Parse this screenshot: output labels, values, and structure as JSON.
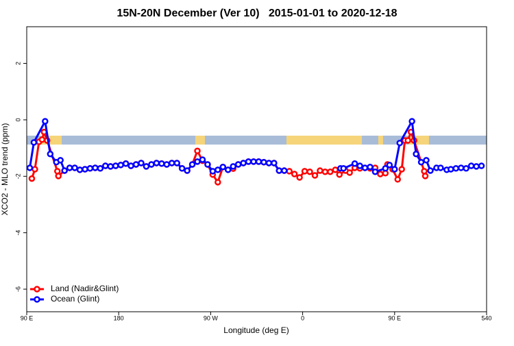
{
  "chart_data": {
    "type": "line",
    "title": "15N-20N December (Ver 10)   2015-01-01 to 2020-12-18",
    "x_label": "Longitude (deg E)",
    "y_label": "XCO2 - MLO trend (ppm)",
    "xlim": [
      90,
      540
    ],
    "xticks": [
      {
        "value": 90,
        "label": "90 E"
      },
      180,
      {
        "value": 270,
        "label": "90 W"
      },
      {
        "value": 360,
        "label": "0"
      },
      {
        "value": 450,
        "label": "90 E"
      },
      540
    ],
    "ylim": [
      -6.8,
      3.3
    ],
    "yticks": [
      -6,
      -4,
      -2,
      0,
      2
    ],
    "legend": "bottom-left",
    "series": [
      {
        "name": "Land (Nadir&Glint)",
        "color": "#ff0000",
        "x": [
          95,
          98,
          102,
          105,
          107,
          110,
          120,
          121,
          127,
          132,
          137,
          142,
          147,
          152,
          157,
          162,
          167,
          172,
          177,
          182,
          187,
          192,
          197,
          202,
          207,
          212,
          217,
          222,
          227,
          232,
          237,
          242,
          247,
          252,
          257,
          262,
          267,
          272,
          277,
          282,
          287,
          292,
          297,
          302,
          307,
          312,
          317,
          322,
          327,
          332,
          337,
          342,
          347,
          352,
          357,
          362,
          367,
          372,
          377,
          382,
          387,
          392,
          396,
          402,
          406,
          411,
          416,
          421,
          426,
          431,
          436,
          441,
          443,
          448,
          453,
          457,
          460,
          463,
          466,
          469,
          479,
          480
        ],
        "values": [
          -2.08,
          -1.75,
          -0.78,
          -0.7,
          -0.43,
          -0.73,
          -1.82,
          -1.99,
          -1.8,
          -1.7,
          -1.7,
          -1.77,
          -1.75,
          -1.72,
          -1.7,
          -1.72,
          -1.63,
          -1.65,
          -1.63,
          -1.6,
          -1.55,
          -1.63,
          -1.58,
          -1.53,
          -1.65,
          -1.58,
          -1.53,
          -1.55,
          -1.58,
          -1.53,
          -1.53,
          -1.72,
          -1.8,
          -1.58,
          -1.1,
          -1.45,
          -1.58,
          -1.94,
          -2.21,
          -1.67,
          -1.77,
          -1.73,
          -1.58,
          -1.53,
          -1.48,
          -1.48,
          -1.48,
          -1.5,
          -1.53,
          -1.53,
          -1.8,
          -1.8,
          -1.82,
          -1.92,
          -2.04,
          -1.82,
          -1.84,
          -1.97,
          -1.8,
          -1.84,
          -1.84,
          -1.77,
          -1.94,
          -1.8,
          -1.87,
          -1.7,
          -1.72,
          -1.7,
          -1.72,
          -1.7,
          -1.92,
          -1.89,
          -1.58,
          -1.75,
          -2.11,
          -1.75,
          -0.73,
          -0.73,
          -0.43,
          -0.73,
          -1.82,
          -1.99
        ]
      },
      {
        "name": "Ocean (Glint)",
        "color": "#0000ff",
        "x": [
          93,
          97,
          108,
          113,
          119,
          123,
          127,
          132,
          137,
          142,
          147,
          152,
          157,
          162,
          167,
          172,
          177,
          182,
          187,
          192,
          197,
          202,
          207,
          212,
          217,
          222,
          227,
          232,
          237,
          242,
          247,
          252,
          257,
          262,
          267,
          272,
          277,
          282,
          287,
          292,
          297,
          302,
          307,
          312,
          317,
          322,
          327,
          332,
          337,
          342,
          370,
          397,
          400,
          411,
          416,
          421,
          426,
          431,
          441,
          445,
          450,
          455,
          467,
          471,
          476,
          481,
          485,
          491,
          495,
          501,
          505,
          510,
          515,
          520,
          525,
          530,
          535
        ],
        "values": [
          -1.7,
          -0.8,
          -0.05,
          -1.21,
          -1.5,
          -1.43,
          -1.8,
          -1.7,
          -1.7,
          -1.77,
          -1.75,
          -1.72,
          -1.7,
          -1.72,
          -1.63,
          -1.65,
          -1.63,
          -1.6,
          -1.55,
          -1.63,
          -1.58,
          -1.53,
          -1.65,
          -1.58,
          -1.53,
          -1.55,
          -1.58,
          -1.53,
          -1.53,
          -1.72,
          -1.8,
          -1.58,
          -1.48,
          -1.41,
          -1.58,
          -1.82,
          -1.77,
          -1.67,
          -1.77,
          -1.65,
          -1.58,
          -1.53,
          -1.48,
          -1.48,
          -1.48,
          -1.5,
          -1.53,
          -1.53,
          -1.8,
          -1.8,
          null,
          -1.72,
          -1.72,
          -1.55,
          -1.63,
          -1.7,
          -1.67,
          -1.84,
          -1.72,
          -1.6,
          -1.75,
          -0.82,
          -0.05,
          -1.21,
          -1.5,
          -1.43,
          -1.8,
          -1.7,
          -1.7,
          -1.77,
          -1.75,
          -1.72,
          -1.7,
          -1.72,
          -1.63,
          -1.65,
          -1.63
        ]
      }
    ]
  }
}
